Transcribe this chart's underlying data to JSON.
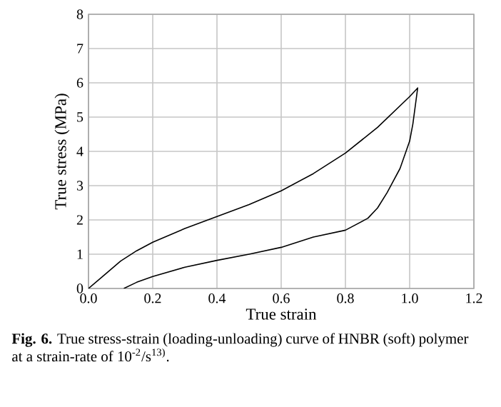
{
  "chart_data": {
    "type": "line",
    "xlabel": "True strain",
    "ylabel": "True stress (MPa)",
    "annotations": [
      "**Fig. 6.** True stress-strain (loading-unloading) curve of HNBR (soft) polymer at a strain-rate of 10$^{-2}$/s$^{13)}$."
    ],
    "series": [
      {
        "color": "#000000",
        "x": [
          0,
          0.05,
          0.1,
          0.15,
          0.2,
          0.3,
          0.4,
          0.5,
          0.6,
          0.7,
          0.8,
          0.9,
          0.95,
          1.0,
          1.025,
          1.02,
          1.01,
          1.0,
          0.97,
          0.93,
          0.9,
          0.87,
          0.8,
          0.7,
          0.6,
          0.5,
          0.4,
          0.3,
          0.2,
          0.15,
          0.11
        ],
        "values": [
          0,
          0.4,
          0.8,
          1.1,
          1.35,
          1.75,
          2.1,
          2.45,
          2.85,
          3.35,
          3.95,
          4.7,
          5.15,
          5.6,
          5.85,
          5.5,
          4.8,
          4.3,
          3.5,
          2.8,
          2.35,
          2.05,
          1.7,
          1.5,
          1.2,
          1.0,
          0.82,
          0.62,
          0.35,
          0.18,
          0
        ]
      }
    ],
    "xlim": [
      0,
      1.2
    ],
    "ylim": [
      0,
      8
    ],
    "xticks": [
      {
        "value": 0,
        "label": "0.0"
      },
      {
        "value": 0.2,
        "label": "0.2"
      },
      {
        "value": 0.4,
        "label": "0.4"
      },
      {
        "value": 0.6,
        "label": "0.6"
      },
      {
        "value": 0.8,
        "label": "0.8"
      },
      {
        "value": 1.0,
        "label": "1.0"
      },
      {
        "value": 1.2,
        "label": "1.2"
      }
    ],
    "yticks": [
      0,
      1,
      2,
      3,
      4,
      5,
      6,
      7,
      8
    ],
    "grid": true,
    "line_style": "solid"
  }
}
